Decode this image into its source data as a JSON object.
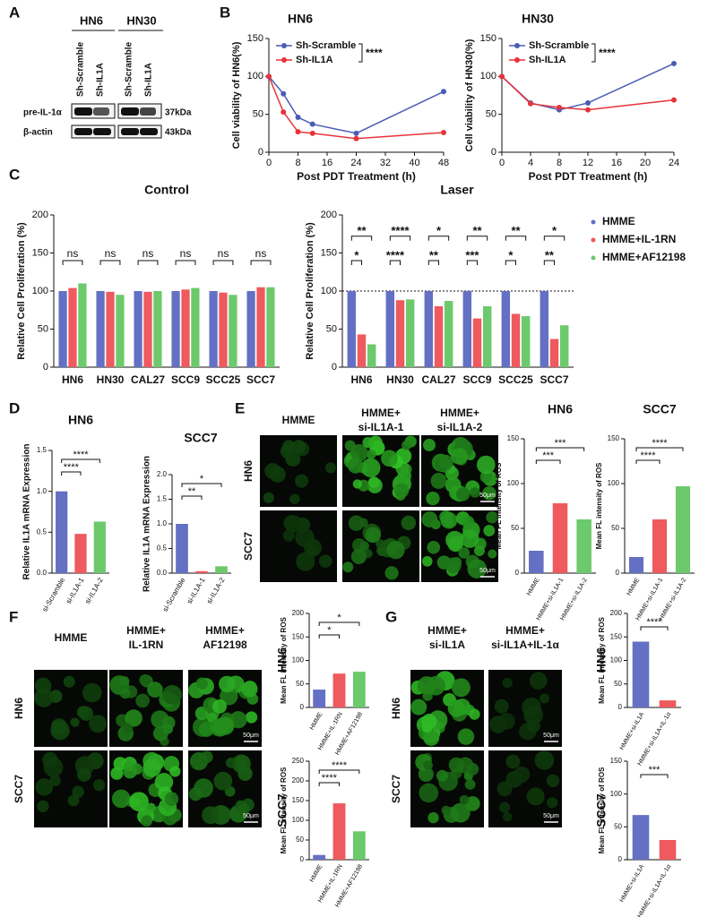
{
  "panel_labels": [
    "A",
    "B",
    "C",
    "D",
    "E",
    "F",
    "G"
  ],
  "blot": {
    "cell_lines": [
      "HN6",
      "HN30"
    ],
    "lanes": [
      "Sh-Scramble",
      "Sh-IL1A",
      "Sh-Scramble",
      "Sh-IL1A"
    ],
    "proteins": [
      "pre-IL-1α",
      "β-actin"
    ],
    "sizes": [
      "37kDa",
      "43kDa"
    ]
  },
  "images": {
    "E": {
      "columns": [
        [
          "HMME"
        ],
        [
          "HMME+",
          "si-IL1A-1"
        ],
        [
          "HMME+",
          "si-IL1A-2"
        ]
      ],
      "rows": [
        "HN6",
        "SCC7"
      ],
      "scale_bar": "50μm"
    },
    "F": {
      "columns": [
        [
          "HMME"
        ],
        [
          "HMME+",
          "IL-1RN"
        ],
        [
          "HMME+",
          "AF12198"
        ]
      ],
      "rows": [
        "HN6",
        "SCC7"
      ],
      "scale_bar": "50μm"
    },
    "G": {
      "columns": [
        [
          "HMME+",
          "si-IL1A"
        ],
        [
          "HMME+",
          "si-IL1A+IL-1α"
        ]
      ],
      "rows": [
        "HN6",
        "SCC7"
      ],
      "scale_bar": "50μm"
    }
  },
  "chart_data": [
    {
      "type": "line",
      "title": "HN6",
      "x": [
        0,
        4,
        8,
        12,
        24,
        48
      ],
      "series": [
        {
          "name": "Sh-Scramble",
          "color": "#4a5cb5",
          "values": [
            100,
            77,
            46,
            37,
            25,
            80
          ]
        },
        {
          "name": "Sh-IL1A",
          "color": "#e8333a",
          "values": [
            100,
            53,
            27,
            25,
            18,
            26
          ]
        }
      ],
      "xlim": [
        0,
        48
      ],
      "xticks": [
        0,
        8,
        16,
        24,
        32,
        40,
        48
      ],
      "ylim": [
        0,
        150
      ],
      "yticks": [
        0,
        50,
        100,
        150
      ],
      "xlabel": "Post PDT Treatment (h)",
      "ylabel": "Cell viability of HN6(%)",
      "significance": "****"
    },
    {
      "type": "line",
      "title": "HN30",
      "x": [
        0,
        4,
        8,
        12,
        24
      ],
      "series": [
        {
          "name": "Sh-Scramble",
          "color": "#4a5cb5",
          "values": [
            100,
            65,
            56,
            65,
            117
          ]
        },
        {
          "name": "Sh-IL1A",
          "color": "#e8333a",
          "values": [
            100,
            64,
            59,
            56,
            69
          ]
        }
      ],
      "xlim": [
        0,
        24
      ],
      "xticks": [
        0,
        4,
        8,
        12,
        16,
        20,
        24
      ],
      "ylim": [
        0,
        150
      ],
      "yticks": [
        0,
        50,
        100,
        150
      ],
      "xlabel": "Post PDT Treatment (h)",
      "ylabel": "Cell viability of HN30(%)",
      "significance": "****"
    },
    {
      "type": "grouped_bar",
      "title": "Control",
      "categories": [
        "HN6",
        "HN30",
        "CAL27",
        "SCC9",
        "SCC25",
        "SCC7"
      ],
      "series": [
        {
          "name": "HMME",
          "color": "#6470c4",
          "values": [
            100,
            100,
            100,
            100,
            100,
            100
          ]
        },
        {
          "name": "HMME+IL-1RN",
          "color": "#ee5a5e",
          "values": [
            104,
            99,
            99,
            102,
            98,
            105
          ]
        },
        {
          "name": "HMME+AF12198",
          "color": "#6cc96c",
          "values": [
            110,
            95,
            100,
            104,
            95,
            105
          ]
        }
      ],
      "ylim": [
        0,
        200
      ],
      "yticks": [
        0,
        50,
        100,
        150,
        200
      ],
      "ylabel": "Relative Cell Proliferation (%)",
      "significance": [
        "ns",
        "ns",
        "ns",
        "ns",
        "ns",
        "ns"
      ]
    },
    {
      "type": "grouped_bar",
      "title": "Laser",
      "categories": [
        "HN6",
        "HN30",
        "CAL27",
        "SCC9",
        "SCC25",
        "SCC7"
      ],
      "series": [
        {
          "name": "HMME",
          "color": "#6470c4",
          "values": [
            100,
            100,
            100,
            100,
            100,
            100
          ]
        },
        {
          "name": "HMME+IL-1RN",
          "color": "#ee5a5e",
          "values": [
            43,
            88,
            80,
            64,
            70,
            37
          ]
        },
        {
          "name": "HMME+AF12198",
          "color": "#6cc96c",
          "values": [
            30,
            89,
            87,
            80,
            67,
            55
          ]
        }
      ],
      "ylim": [
        0,
        200
      ],
      "yticks": [
        0,
        50,
        100,
        150,
        200
      ],
      "ylabel": "Relative Cell Proliferation (%)",
      "reference_line": 100,
      "legend": "right",
      "significance": [
        [
          "**",
          "*"
        ],
        [
          "****",
          "****"
        ],
        [
          "*",
          "**"
        ],
        [
          "**",
          "***"
        ],
        [
          "**",
          "*"
        ],
        [
          "*",
          "**"
        ]
      ]
    },
    {
      "type": "bar",
      "title": "HN6",
      "categories": [
        "si-Scramble",
        "si-IL1A-1",
        "si-IL1A-2"
      ],
      "values": [
        1.0,
        0.48,
        0.63
      ],
      "colors": [
        "#6470c4",
        "#ee5a5e",
        "#6cc96c"
      ],
      "ylim": [
        0,
        1.5
      ],
      "yticks": [
        {
          "value": 0,
          "label": "0.0"
        },
        0.5,
        {
          "value": 1,
          "label": "1.0"
        },
        1.5
      ],
      "ylabel": "Relative IL1A mRNA Expression",
      "significance": [
        "****",
        "****"
      ]
    },
    {
      "type": "bar",
      "title": "SCC7",
      "categories": [
        "si-Scramble",
        "si-IL1A-1",
        "si-IL1A-2"
      ],
      "values": [
        1.0,
        0.04,
        0.14
      ],
      "colors": [
        "#6470c4",
        "#ee5a5e",
        "#6cc96c"
      ],
      "ylim": [
        0,
        2
      ],
      "yticks": [
        {
          "value": 0,
          "label": "0.0"
        },
        0.5,
        {
          "value": 1,
          "label": "1.0"
        },
        1.5,
        {
          "value": 2,
          "label": "2.0"
        }
      ],
      "ylabel": "Relative IL1A mRNA Expression",
      "significance": [
        "**",
        "*"
      ]
    },
    {
      "type": "bar",
      "title": "HN6",
      "categories": [
        "HMME",
        "HMME+si-IL1A-1",
        "HMME+si-IL1A-2"
      ],
      "values": [
        25,
        78,
        60
      ],
      "colors": [
        "#6470c4",
        "#ee5a5e",
        "#6cc96c"
      ],
      "ylim": [
        0,
        150
      ],
      "yticks": [
        0,
        50,
        100,
        150
      ],
      "ylabel": "Mean FL intensity of ROS",
      "significance": [
        "***",
        "***"
      ]
    },
    {
      "type": "bar",
      "title": "SCC7",
      "categories": [
        "HMME",
        "HMME+si-IL1A-1",
        "HMME+si-IL1A-2"
      ],
      "values": [
        18,
        60,
        97
      ],
      "colors": [
        "#6470c4",
        "#ee5a5e",
        "#6cc96c"
      ],
      "ylim": [
        0,
        150
      ],
      "yticks": [
        0,
        50,
        100,
        150
      ],
      "ylabel": "Mean FL intensity of ROS",
      "significance": [
        "****",
        "****"
      ]
    },
    {
      "type": "bar",
      "title": "HN6",
      "categories": [
        "HMME",
        "HMME+IL-1RN",
        "HMME+AF12198"
      ],
      "values": [
        38,
        72,
        76
      ],
      "colors": [
        "#6470c4",
        "#ee5a5e",
        "#6cc96c"
      ],
      "ylim": [
        0,
        200
      ],
      "yticks": [
        0,
        50,
        100,
        150,
        200
      ],
      "ylabel": "Mean FL intensity of ROS",
      "significance": [
        "*",
        "*"
      ]
    },
    {
      "type": "bar",
      "title": "SCC7",
      "categories": [
        "HMME",
        "HMME+IL-1RN",
        "HMME+AF12198"
      ],
      "values": [
        12,
        143,
        72
      ],
      "colors": [
        "#6470c4",
        "#ee5a5e",
        "#6cc96c"
      ],
      "ylim": [
        0,
        250
      ],
      "yticks": [
        0,
        50,
        100,
        150,
        200,
        250
      ],
      "ylabel": "Mean FL intensity of ROS",
      "significance": [
        "****",
        "****"
      ]
    },
    {
      "type": "bar",
      "title": "HN6",
      "categories": [
        "HMME+si-IL1A",
        "HMME+si-IL1A+IL-1α"
      ],
      "values": [
        140,
        15
      ],
      "colors": [
        "#6470c4",
        "#ee5a5e"
      ],
      "ylim": [
        0,
        200
      ],
      "yticks": [
        0,
        50,
        100,
        150,
        200
      ],
      "ylabel": "Mean FL intensity of ROS",
      "significance": [
        "****"
      ]
    },
    {
      "type": "bar",
      "title": "SCC7",
      "categories": [
        "HMME+si-IL1A",
        "HMME+si-IL1A+IL-1α"
      ],
      "values": [
        68,
        30
      ],
      "colors": [
        "#6470c4",
        "#ee5a5e"
      ],
      "ylim": [
        0,
        150
      ],
      "yticks": [
        0,
        50,
        100,
        150
      ],
      "ylabel": "Mean FL intensity of ROS",
      "significance": [
        "***"
      ]
    }
  ]
}
